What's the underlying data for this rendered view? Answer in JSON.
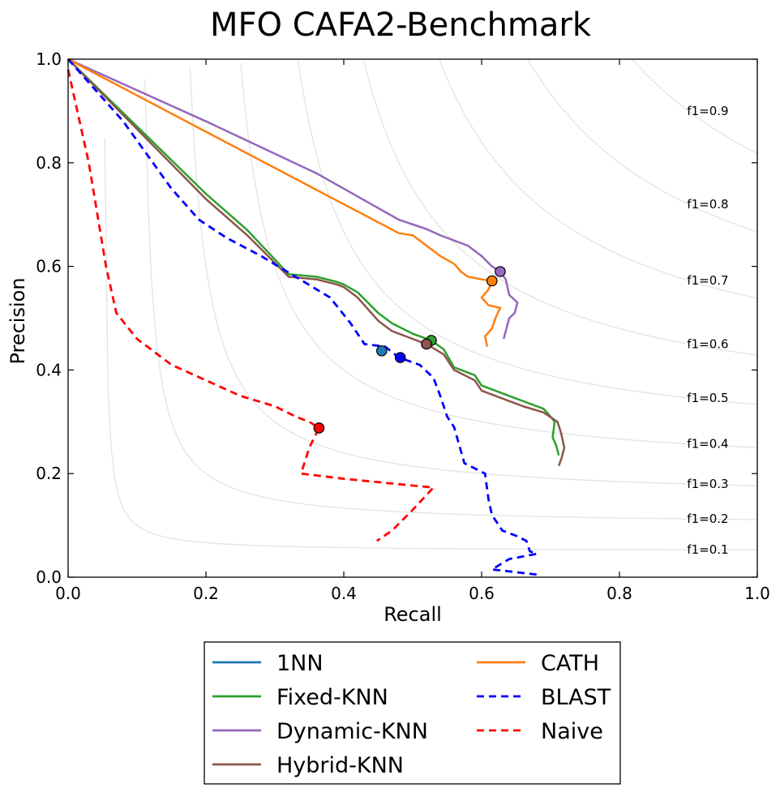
{
  "chart_data": {
    "type": "line",
    "title": "MFO CAFA2-Benchmark",
    "xlabel": "Recall",
    "ylabel": "Precision",
    "xlim": [
      0,
      1
    ],
    "ylim": [
      0,
      1
    ],
    "x_ticks": [
      "0.0",
      "0.2",
      "0.4",
      "0.6",
      "0.8",
      "1.0"
    ],
    "y_ticks": [
      "0.0",
      "0.2",
      "0.4",
      "0.6",
      "0.8",
      "1.0"
    ],
    "grid": false,
    "legend_position": "bottom-outside",
    "iso_f1": [
      {
        "f1": 0.1,
        "label": "f1=0.1"
      },
      {
        "f1": 0.2,
        "label": "f1=0.2"
      },
      {
        "f1": 0.3,
        "label": "f1=0.3"
      },
      {
        "f1": 0.4,
        "label": "f1=0.4"
      },
      {
        "f1": 0.5,
        "label": "f1=0.5"
      },
      {
        "f1": 0.6,
        "label": "f1=0.6"
      },
      {
        "f1": 0.7,
        "label": "f1=0.7"
      },
      {
        "f1": 0.8,
        "label": "f1=0.8"
      },
      {
        "f1": 0.9,
        "label": "f1=0.9"
      }
    ],
    "series": [
      {
        "name": "1NN",
        "color": "#1f77b4",
        "dash": false,
        "points": [],
        "marker": [
          0.455,
          0.437
        ]
      },
      {
        "name": "Fixed-KNN",
        "color": "#2ca02c",
        "dash": false,
        "points": [
          [
            0.0,
            1.0
          ],
          [
            0.1,
            0.87
          ],
          [
            0.2,
            0.74
          ],
          [
            0.26,
            0.67
          ],
          [
            0.32,
            0.585
          ],
          [
            0.36,
            0.58
          ],
          [
            0.39,
            0.57
          ],
          [
            0.4,
            0.565
          ],
          [
            0.42,
            0.55
          ],
          [
            0.45,
            0.51
          ],
          [
            0.47,
            0.49
          ],
          [
            0.5,
            0.47
          ],
          [
            0.527,
            0.457
          ],
          [
            0.545,
            0.44
          ],
          [
            0.56,
            0.405
          ],
          [
            0.59,
            0.39
          ],
          [
            0.6,
            0.37
          ],
          [
            0.63,
            0.355
          ],
          [
            0.66,
            0.34
          ],
          [
            0.69,
            0.325
          ],
          [
            0.7,
            0.31
          ],
          [
            0.706,
            0.3
          ],
          [
            0.703,
            0.27
          ],
          [
            0.708,
            0.255
          ],
          [
            0.712,
            0.235
          ]
        ],
        "marker": [
          0.527,
          0.457
        ]
      },
      {
        "name": "Dynamic-KNN",
        "color": "#9467bd",
        "dash": false,
        "points": [
          [
            0.0,
            1.0
          ],
          [
            0.2,
            0.88
          ],
          [
            0.36,
            0.78
          ],
          [
            0.48,
            0.69
          ],
          [
            0.52,
            0.672
          ],
          [
            0.54,
            0.66
          ],
          [
            0.58,
            0.64
          ],
          [
            0.6,
            0.62
          ],
          [
            0.615,
            0.6
          ],
          [
            0.627,
            0.59
          ],
          [
            0.635,
            0.575
          ],
          [
            0.64,
            0.545
          ],
          [
            0.652,
            0.53
          ],
          [
            0.648,
            0.51
          ],
          [
            0.64,
            0.5
          ],
          [
            0.632,
            0.46
          ]
        ],
        "marker": [
          0.627,
          0.59
        ]
      },
      {
        "name": "Hybrid-KNN",
        "color": "#8c564b",
        "dash": false,
        "points": [
          [
            0.0,
            1.0
          ],
          [
            0.1,
            0.865
          ],
          [
            0.2,
            0.73
          ],
          [
            0.26,
            0.66
          ],
          [
            0.32,
            0.58
          ],
          [
            0.36,
            0.575
          ],
          [
            0.39,
            0.565
          ],
          [
            0.4,
            0.56
          ],
          [
            0.42,
            0.54
          ],
          [
            0.45,
            0.495
          ],
          [
            0.47,
            0.475
          ],
          [
            0.52,
            0.45
          ],
          [
            0.545,
            0.43
          ],
          [
            0.56,
            0.4
          ],
          [
            0.59,
            0.38
          ],
          [
            0.6,
            0.36
          ],
          [
            0.63,
            0.345
          ],
          [
            0.66,
            0.33
          ],
          [
            0.69,
            0.318
          ],
          [
            0.71,
            0.3
          ],
          [
            0.715,
            0.28
          ],
          [
            0.72,
            0.25
          ],
          [
            0.716,
            0.23
          ],
          [
            0.712,
            0.215
          ]
        ],
        "marker": [
          0.52,
          0.45
        ]
      },
      {
        "name": "CATH",
        "color": "#ff7f0e",
        "dash": false,
        "points": [
          [
            0.0,
            1.0
          ],
          [
            0.2,
            0.86
          ],
          [
            0.4,
            0.72
          ],
          [
            0.48,
            0.664
          ],
          [
            0.5,
            0.66
          ],
          [
            0.52,
            0.64
          ],
          [
            0.54,
            0.62
          ],
          [
            0.56,
            0.605
          ],
          [
            0.57,
            0.59
          ],
          [
            0.58,
            0.58
          ],
          [
            0.6,
            0.575
          ],
          [
            0.615,
            0.572
          ],
          [
            0.61,
            0.555
          ],
          [
            0.6,
            0.54
          ],
          [
            0.61,
            0.525
          ],
          [
            0.627,
            0.52
          ],
          [
            0.62,
            0.5
          ],
          [
            0.615,
            0.48
          ],
          [
            0.605,
            0.465
          ],
          [
            0.608,
            0.445
          ]
        ],
        "marker": [
          0.615,
          0.572
        ]
      },
      {
        "name": "BLAST",
        "color": "#0000ff",
        "dash": true,
        "points": [
          [
            0.0,
            1.0
          ],
          [
            0.08,
            0.88
          ],
          [
            0.15,
            0.75
          ],
          [
            0.19,
            0.69
          ],
          [
            0.23,
            0.655
          ],
          [
            0.28,
            0.62
          ],
          [
            0.33,
            0.58
          ],
          [
            0.38,
            0.54
          ],
          [
            0.41,
            0.49
          ],
          [
            0.43,
            0.45
          ],
          [
            0.46,
            0.445
          ],
          [
            0.48,
            0.424
          ],
          [
            0.51,
            0.41
          ],
          [
            0.53,
            0.385
          ],
          [
            0.54,
            0.35
          ],
          [
            0.55,
            0.31
          ],
          [
            0.56,
            0.29
          ],
          [
            0.575,
            0.22
          ],
          [
            0.59,
            0.21
          ],
          [
            0.605,
            0.2
          ],
          [
            0.61,
            0.15
          ],
          [
            0.615,
            0.12
          ],
          [
            0.63,
            0.09
          ],
          [
            0.65,
            0.08
          ],
          [
            0.665,
            0.07
          ],
          [
            0.67,
            0.05
          ],
          [
            0.68,
            0.045
          ],
          [
            0.64,
            0.035
          ],
          [
            0.615,
            0.015
          ],
          [
            0.68,
            0.005
          ]
        ],
        "marker": [
          0.482,
          0.424
        ]
      },
      {
        "name": "Naive",
        "color": "#ff0000",
        "dash": true,
        "points": [
          [
            0.0,
            0.98
          ],
          [
            0.03,
            0.8
          ],
          [
            0.055,
            0.6
          ],
          [
            0.07,
            0.51
          ],
          [
            0.1,
            0.46
          ],
          [
            0.15,
            0.41
          ],
          [
            0.2,
            0.38
          ],
          [
            0.25,
            0.35
          ],
          [
            0.3,
            0.33
          ],
          [
            0.33,
            0.31
          ],
          [
            0.35,
            0.3
          ],
          [
            0.364,
            0.288
          ],
          [
            0.35,
            0.25
          ],
          [
            0.338,
            0.2
          ],
          [
            0.4,
            0.19
          ],
          [
            0.53,
            0.173
          ],
          [
            0.5,
            0.13
          ],
          [
            0.47,
            0.09
          ],
          [
            0.448,
            0.07
          ]
        ],
        "marker": [
          0.364,
          0.288
        ]
      }
    ]
  }
}
